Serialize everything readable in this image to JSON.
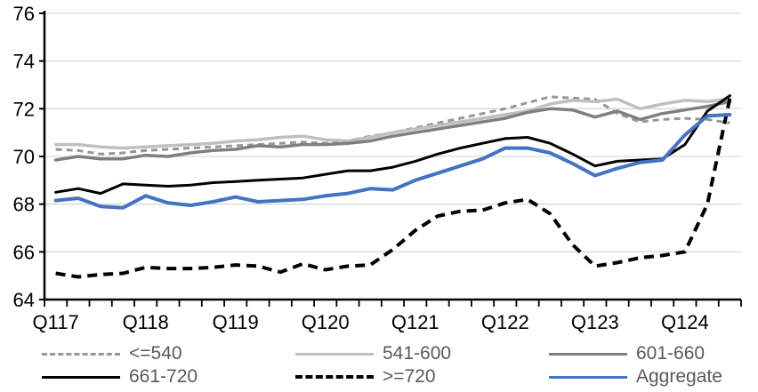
{
  "page": {
    "background": "#ffffff"
  },
  "chart_data": {
    "type": "line",
    "title": "",
    "x_categories": [
      "Q117",
      "Q217",
      "Q317",
      "Q417",
      "Q118",
      "Q218",
      "Q318",
      "Q418",
      "Q119",
      "Q219",
      "Q319",
      "Q419",
      "Q120",
      "Q220",
      "Q320",
      "Q420",
      "Q121",
      "Q221",
      "Q321",
      "Q421",
      "Q122",
      "Q222",
      "Q322",
      "Q422",
      "Q123",
      "Q223",
      "Q323",
      "Q423",
      "Q124",
      "Q224",
      "Q324"
    ],
    "x_axis_tick_labels": [
      "Q117",
      "Q118",
      "Q119",
      "Q120",
      "Q121",
      "Q122",
      "Q123",
      "Q124"
    ],
    "x_label_every": 4,
    "ylim": [
      64,
      76
    ],
    "y_ticks": [
      64,
      66,
      68,
      70,
      72,
      74,
      76
    ],
    "grid": "horizontal",
    "legend_position": "bottom",
    "colors": {
      "gridline": "#d9d9d9",
      "axis": "#000000",
      "axis_text": "#000000",
      "legend_text": "#595959",
      "accent_blue": "#4472c4"
    },
    "series": [
      {
        "name": "<=540",
        "color": "#969696",
        "dash": "dashed",
        "width": 3,
        "values": [
          70.3,
          70.25,
          70.1,
          70.15,
          70.25,
          70.3,
          70.35,
          70.4,
          70.45,
          70.5,
          70.55,
          70.6,
          70.55,
          70.65,
          70.85,
          71.0,
          71.2,
          71.4,
          71.6,
          71.8,
          72.0,
          72.25,
          72.5,
          72.45,
          72.4,
          71.8,
          71.45,
          71.55,
          71.6,
          71.55,
          71.4
        ]
      },
      {
        "name": "541-600",
        "color": "#bfbfbf",
        "dash": "solid",
        "width": 3.5,
        "values": [
          70.5,
          70.5,
          70.4,
          70.35,
          70.4,
          70.45,
          70.5,
          70.55,
          70.65,
          70.7,
          70.8,
          70.85,
          70.7,
          70.65,
          70.8,
          71.0,
          71.15,
          71.3,
          71.45,
          71.6,
          71.75,
          71.9,
          72.2,
          72.35,
          72.3,
          72.4,
          72.0,
          72.2,
          72.35,
          72.3,
          72.4
        ]
      },
      {
        "name": "601-660",
        "color": "#7f7f7f",
        "dash": "solid",
        "width": 3.5,
        "values": [
          69.85,
          70.0,
          69.9,
          69.9,
          70.05,
          70.0,
          70.15,
          70.25,
          70.3,
          70.45,
          70.4,
          70.5,
          70.5,
          70.55,
          70.65,
          70.85,
          71.0,
          71.15,
          71.3,
          71.45,
          71.6,
          71.85,
          72.0,
          71.95,
          71.65,
          71.9,
          71.55,
          71.8,
          71.95,
          72.1,
          72.3
        ]
      },
      {
        "name": "661-720",
        "color": "#000000",
        "dash": "solid",
        "width": 3,
        "values": [
          68.5,
          68.65,
          68.45,
          68.85,
          68.8,
          68.75,
          68.8,
          68.9,
          68.95,
          69.0,
          69.05,
          69.1,
          69.25,
          69.4,
          69.4,
          69.55,
          69.8,
          70.1,
          70.35,
          70.55,
          70.75,
          70.8,
          70.55,
          70.1,
          69.6,
          69.8,
          69.85,
          69.9,
          70.5,
          71.9,
          72.55
        ]
      },
      {
        "name": ">=720",
        "color": "#000000",
        "dash": "dashed",
        "width": 4,
        "values": [
          65.1,
          64.95,
          65.05,
          65.1,
          65.35,
          65.3,
          65.3,
          65.35,
          65.45,
          65.4,
          65.15,
          65.5,
          65.25,
          65.4,
          65.45,
          66.1,
          66.9,
          67.5,
          67.7,
          67.75,
          68.05,
          68.2,
          67.6,
          66.3,
          65.4,
          65.55,
          65.75,
          65.85,
          66.0,
          68.0,
          72.45
        ]
      },
      {
        "name": "Aggregate",
        "color": "#4472c4",
        "dash": "solid",
        "width": 4,
        "values": [
          68.15,
          68.25,
          67.9,
          67.85,
          68.35,
          68.05,
          67.95,
          68.1,
          68.3,
          68.1,
          68.15,
          68.2,
          68.35,
          68.45,
          68.65,
          68.6,
          69.0,
          69.3,
          69.6,
          69.9,
          70.35,
          70.35,
          70.15,
          69.7,
          69.2,
          69.5,
          69.75,
          69.85,
          70.9,
          71.7,
          71.75
        ]
      }
    ],
    "legend_rows": [
      [
        "<=540",
        "541-600",
        "601-660"
      ],
      [
        "661-720",
        ">=720",
        "Aggregate"
      ]
    ]
  }
}
